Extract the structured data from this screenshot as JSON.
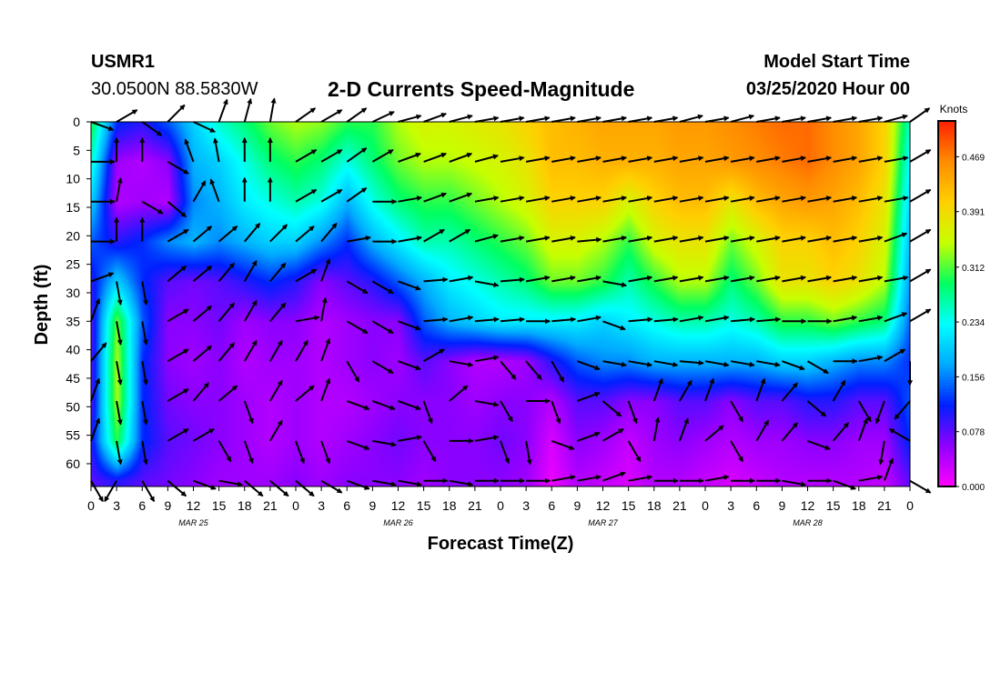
{
  "header": {
    "station": "USMR1",
    "coords": "30.0500N 88.5830W",
    "title": "2-D Currents Speed-Magnitude",
    "start_label": "Model Start Time",
    "start_value": "03/25/2020 Hour 00"
  },
  "chart_data": {
    "type": "heatmap",
    "title": "2-D Currents Speed-Magnitude",
    "xlabel": "Forecast Time(Z)",
    "ylabel": "Depth (ft)",
    "x_range_hours": [
      0,
      96
    ],
    "x_tick_labels": [
      "0",
      "3",
      "6",
      "9",
      "12",
      "15",
      "18",
      "21",
      "0",
      "3",
      "6",
      "9",
      "12",
      "15",
      "18",
      "21",
      "0",
      "3",
      "6",
      "9",
      "12",
      "15",
      "18",
      "21",
      "0",
      "3",
      "6",
      "9",
      "12",
      "15",
      "18",
      "21",
      "0"
    ],
    "date_labels": [
      {
        "label": "MAR 25",
        "hour": 12
      },
      {
        "label": "MAR 26",
        "hour": 36
      },
      {
        "label": "MAR 27",
        "hour": 60
      },
      {
        "label": "MAR 28",
        "hour": 84
      }
    ],
    "y_range_ft": [
      0,
      64
    ],
    "y_ticks": [
      0,
      5,
      10,
      15,
      20,
      25,
      30,
      35,
      40,
      45,
      50,
      55,
      60
    ],
    "y_inverted": true,
    "colorbar": {
      "unit": "Knots",
      "tick_labels": [
        "0.000",
        "0.078",
        "0.156",
        "0.234",
        "0.312",
        "0.391",
        "0.469"
      ],
      "range": [
        0,
        0.52
      ],
      "colors": [
        "#ff00ff",
        "#9000ff",
        "#0020ff",
        "#00aaff",
        "#00ffff",
        "#00ff60",
        "#c8ff00",
        "#ffd000",
        "#ff8c00",
        "#ff2000"
      ]
    },
    "depth_rows_ft": [
      0,
      7,
      14,
      21,
      28,
      35,
      42,
      49,
      56,
      63
    ],
    "time_cols_hours": [
      0,
      3,
      6,
      9,
      12,
      15,
      18,
      21,
      24,
      27,
      30,
      33,
      36,
      39,
      42,
      45,
      48,
      51,
      54,
      57,
      60,
      63,
      66,
      69,
      72,
      75,
      78,
      81,
      84,
      87,
      90,
      93,
      96
    ],
    "speed_knots": [
      [
        0.3,
        0.12,
        0.1,
        0.14,
        0.2,
        0.25,
        0.28,
        0.32,
        0.34,
        0.33,
        0.3,
        0.3,
        0.34,
        0.36,
        0.36,
        0.37,
        0.38,
        0.4,
        0.42,
        0.43,
        0.44,
        0.44,
        0.44,
        0.45,
        0.45,
        0.46,
        0.47,
        0.48,
        0.48,
        0.46,
        0.44,
        0.4,
        0.25
      ],
      [
        0.25,
        0.05,
        0.04,
        0.06,
        0.18,
        0.2,
        0.24,
        0.28,
        0.3,
        0.28,
        0.24,
        0.28,
        0.32,
        0.34,
        0.34,
        0.35,
        0.36,
        0.38,
        0.42,
        0.42,
        0.43,
        0.43,
        0.43,
        0.44,
        0.44,
        0.45,
        0.46,
        0.47,
        0.48,
        0.46,
        0.44,
        0.4,
        0.22
      ],
      [
        0.2,
        0.04,
        0.05,
        0.04,
        0.16,
        0.18,
        0.22,
        0.24,
        0.26,
        0.24,
        0.18,
        0.24,
        0.28,
        0.3,
        0.3,
        0.32,
        0.34,
        0.36,
        0.4,
        0.4,
        0.4,
        0.36,
        0.4,
        0.42,
        0.42,
        0.38,
        0.42,
        0.44,
        0.45,
        0.44,
        0.42,
        0.38,
        0.2
      ],
      [
        0.14,
        0.1,
        0.12,
        0.16,
        0.18,
        0.16,
        0.18,
        0.2,
        0.2,
        0.16,
        0.12,
        0.18,
        0.22,
        0.26,
        0.26,
        0.28,
        0.3,
        0.32,
        0.36,
        0.36,
        0.34,
        0.3,
        0.36,
        0.38,
        0.38,
        0.32,
        0.36,
        0.4,
        0.4,
        0.42,
        0.4,
        0.36,
        0.18
      ],
      [
        0.1,
        0.2,
        0.12,
        0.08,
        0.07,
        0.08,
        0.1,
        0.12,
        0.1,
        0.06,
        0.08,
        0.1,
        0.14,
        0.18,
        0.22,
        0.24,
        0.26,
        0.28,
        0.32,
        0.32,
        0.3,
        0.26,
        0.3,
        0.34,
        0.34,
        0.28,
        0.32,
        0.38,
        0.38,
        0.4,
        0.38,
        0.34,
        0.16
      ],
      [
        0.08,
        0.32,
        0.14,
        0.06,
        0.06,
        0.07,
        0.05,
        0.06,
        0.06,
        0.04,
        0.05,
        0.06,
        0.06,
        0.14,
        0.18,
        0.2,
        0.22,
        0.22,
        0.22,
        0.22,
        0.2,
        0.22,
        0.24,
        0.26,
        0.26,
        0.24,
        0.26,
        0.3,
        0.3,
        0.32,
        0.3,
        0.28,
        0.14
      ],
      [
        0.08,
        0.34,
        0.12,
        0.06,
        0.05,
        0.06,
        0.04,
        0.05,
        0.05,
        0.04,
        0.05,
        0.06,
        0.05,
        0.08,
        0.06,
        0.04,
        0.04,
        0.05,
        0.1,
        0.14,
        0.16,
        0.16,
        0.18,
        0.18,
        0.18,
        0.18,
        0.18,
        0.2,
        0.2,
        0.18,
        0.16,
        0.16,
        0.12
      ],
      [
        0.08,
        0.34,
        0.12,
        0.07,
        0.06,
        0.06,
        0.05,
        0.04,
        0.05,
        0.04,
        0.04,
        0.05,
        0.06,
        0.06,
        0.06,
        0.05,
        0.06,
        0.06,
        0.04,
        0.08,
        0.08,
        0.06,
        0.06,
        0.08,
        0.08,
        0.06,
        0.08,
        0.08,
        0.1,
        0.1,
        0.08,
        0.08,
        0.14
      ],
      [
        0.1,
        0.3,
        0.12,
        0.08,
        0.07,
        0.06,
        0.05,
        0.04,
        0.05,
        0.04,
        0.05,
        0.06,
        0.07,
        0.06,
        0.06,
        0.06,
        0.07,
        0.06,
        0.02,
        0.06,
        0.05,
        0.03,
        0.05,
        0.06,
        0.05,
        0.04,
        0.05,
        0.05,
        0.06,
        0.06,
        0.05,
        0.05,
        0.12
      ],
      [
        0.08,
        0.1,
        0.08,
        0.07,
        0.06,
        0.05,
        0.05,
        0.05,
        0.06,
        0.05,
        0.06,
        0.06,
        0.06,
        0.05,
        0.06,
        0.06,
        0.06,
        0.05,
        0.01,
        0.04,
        0.03,
        0.02,
        0.04,
        0.04,
        0.03,
        0.02,
        0.03,
        0.04,
        0.04,
        0.04,
        0.04,
        0.03,
        0.08
      ]
    ],
    "direction_deg": [
      [
        110,
        60,
        125,
        45,
        115,
        20,
        15,
        10,
        55,
        60,
        55,
        65,
        75,
        70,
        75,
        80,
        80,
        80,
        80,
        80,
        80,
        80,
        80,
        75,
        80,
        75,
        80,
        80,
        80,
        80,
        80,
        75,
        55
      ],
      [
        90,
        0,
        0,
        120,
        340,
        350,
        0,
        0,
        60,
        60,
        55,
        60,
        70,
        70,
        70,
        75,
        80,
        80,
        80,
        80,
        80,
        80,
        80,
        80,
        80,
        80,
        80,
        80,
        80,
        80,
        80,
        80,
        60
      ],
      [
        90,
        10,
        120,
        130,
        30,
        340,
        0,
        0,
        60,
        60,
        55,
        90,
        80,
        70,
        70,
        80,
        80,
        80,
        80,
        80,
        80,
        80,
        80,
        80,
        80,
        80,
        80,
        80,
        80,
        80,
        80,
        80,
        60
      ],
      [
        90,
        0,
        0,
        60,
        50,
        50,
        40,
        45,
        50,
        40,
        80,
        90,
        80,
        60,
        60,
        75,
        80,
        80,
        80,
        85,
        80,
        80,
        80,
        80,
        80,
        80,
        80,
        80,
        80,
        80,
        80,
        70,
        60
      ],
      [
        70,
        170,
        170,
        50,
        50,
        40,
        30,
        40,
        60,
        20,
        120,
        120,
        110,
        85,
        80,
        100,
        85,
        80,
        80,
        80,
        100,
        80,
        80,
        80,
        80,
        80,
        80,
        80,
        80,
        80,
        80,
        80,
        60
      ],
      [
        20,
        170,
        170,
        60,
        50,
        40,
        30,
        40,
        80,
        10,
        120,
        120,
        110,
        85,
        80,
        85,
        85,
        90,
        85,
        80,
        110,
        85,
        85,
        80,
        80,
        85,
        85,
        90,
        90,
        80,
        80,
        70,
        60
      ],
      [
        40,
        170,
        170,
        60,
        50,
        40,
        30,
        30,
        30,
        20,
        150,
        120,
        110,
        60,
        100,
        80,
        140,
        140,
        150,
        110,
        100,
        100,
        100,
        95,
        100,
        100,
        100,
        110,
        120,
        90,
        80,
        60,
        180
      ],
      [
        20,
        170,
        170,
        60,
        40,
        50,
        160,
        30,
        50,
        20,
        110,
        110,
        110,
        160,
        50,
        100,
        150,
        90,
        160,
        70,
        130,
        160,
        20,
        30,
        20,
        150,
        20,
        40,
        130,
        30,
        150,
        200,
        220
      ],
      [
        20,
        170,
        170,
        60,
        60,
        150,
        160,
        30,
        160,
        160,
        110,
        100,
        80,
        150,
        90,
        80,
        160,
        170,
        110,
        70,
        60,
        150,
        10,
        20,
        50,
        150,
        30,
        40,
        110,
        40,
        20,
        190,
        300
      ],
      [
        150,
        210,
        150,
        130,
        110,
        100,
        130,
        130,
        130,
        120,
        110,
        100,
        100,
        90,
        100,
        90,
        90,
        90,
        80,
        80,
        70,
        80,
        90,
        90,
        80,
        90,
        90,
        100,
        90,
        110,
        80,
        20,
        120
      ]
    ]
  }
}
